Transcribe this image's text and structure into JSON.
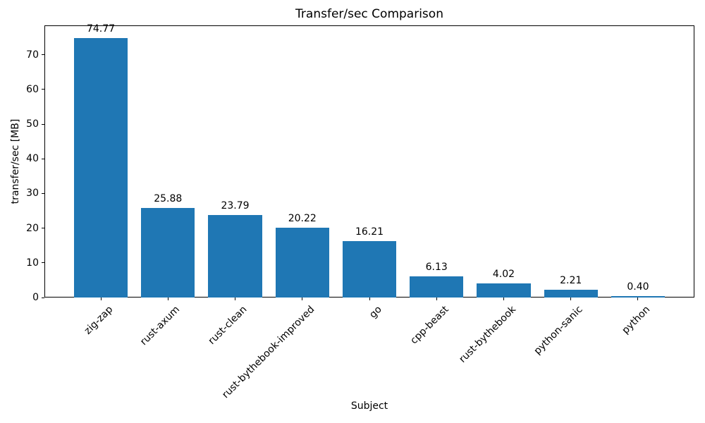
{
  "chart_data": {
    "type": "bar",
    "title": "Transfer/sec Comparison",
    "xlabel": "Subject",
    "ylabel": "transfer/sec [MB]",
    "categories": [
      "zig-zap",
      "rust-axum",
      "rust-clean",
      "rust-bythebook-improved",
      "go",
      "cpp-beast",
      "rust-bythebook",
      "python-sanic",
      "python"
    ],
    "values": [
      74.77,
      25.88,
      23.79,
      20.22,
      16.21,
      6.13,
      4.02,
      2.21,
      0.4
    ],
    "value_labels": [
      "74.77",
      "25.88",
      "23.79",
      "20.22",
      "16.21",
      "6.13",
      "4.02",
      "2.21",
      "0.40"
    ],
    "yticks": [
      0,
      10,
      20,
      30,
      40,
      50,
      60,
      70
    ],
    "ylim": [
      0,
      78.5
    ],
    "grid": false,
    "legend": "none",
    "bar_color": "#1f77b4",
    "axis_color": "#000000",
    "background_color": "#ffffff"
  }
}
